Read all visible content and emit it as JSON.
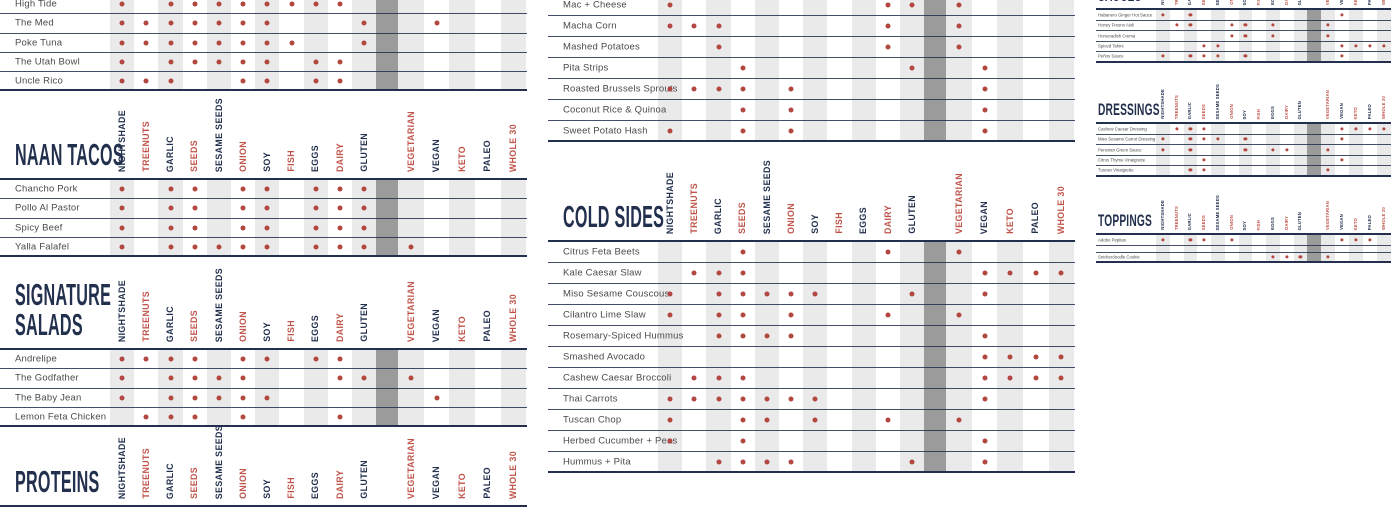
{
  "palette": {
    "navy": "#22304e",
    "red": "#c0544a",
    "dot": "#b2473f",
    "stripe": "#eaeaea",
    "divider": "#9b9b9b",
    "row_label": "#4a4a4a"
  },
  "columns": {
    "allergens": [
      {
        "label": "NIGHTSHADE",
        "color": "navy"
      },
      {
        "label": "TREENUTS",
        "color": "red"
      },
      {
        "label": "GARLIC",
        "color": "navy"
      },
      {
        "label": "SEEDS",
        "color": "red"
      },
      {
        "label": "SESAME SEEDS",
        "color": "navy"
      },
      {
        "label": "ONION",
        "color": "red"
      },
      {
        "label": "SOY",
        "color": "navy"
      },
      {
        "label": "FISH",
        "color": "red"
      },
      {
        "label": "EGGS",
        "color": "navy"
      },
      {
        "label": "DAIRY",
        "color": "red"
      },
      {
        "label": "GLUTEN",
        "color": "navy"
      }
    ],
    "diets": [
      {
        "label": "VEGETARIAN",
        "color": "red"
      },
      {
        "label": "VEGAN",
        "color": "navy"
      },
      {
        "label": "KETO",
        "color": "red"
      },
      {
        "label": "PALEO",
        "color": "navy"
      },
      {
        "label": "WHOLE 30",
        "color": "red"
      }
    ]
  },
  "sections": {
    "bowls_top": {
      "title_lines": null,
      "rows": [
        {
          "label": "High Tide",
          "a": [
            0,
            2,
            3,
            4,
            5,
            6,
            7,
            8,
            9
          ],
          "d": []
        },
        {
          "label": "The Med",
          "a": [
            0,
            1,
            2,
            3,
            4,
            5,
            6,
            10
          ],
          "d": [
            1
          ]
        },
        {
          "label": "Poke Tuna",
          "a": [
            0,
            1,
            2,
            3,
            4,
            5,
            6,
            7,
            10
          ],
          "d": []
        },
        {
          "label": "The Utah Bowl",
          "a": [
            0,
            2,
            3,
            4,
            5,
            6,
            8,
            9
          ],
          "d": []
        },
        {
          "label": "Uncle Rico",
          "a": [
            0,
            1,
            2,
            5,
            6,
            8,
            9
          ],
          "d": []
        }
      ]
    },
    "naan": {
      "title_lines": [
        "NAAN TACOS"
      ],
      "rows": [
        {
          "label": "Chancho Pork",
          "a": [
            0,
            2,
            3,
            5,
            6,
            8,
            9,
            10
          ],
          "d": []
        },
        {
          "label": "Pollo Al Pastor",
          "a": [
            0,
            2,
            3,
            5,
            6,
            8,
            9,
            10
          ],
          "d": []
        },
        {
          "label": "Spicy Beef",
          "a": [
            0,
            2,
            3,
            5,
            6,
            8,
            9,
            10
          ],
          "d": []
        },
        {
          "label": "Yalla Falafel",
          "a": [
            0,
            2,
            3,
            4,
            5,
            6,
            8,
            9,
            10
          ],
          "d": [
            0
          ]
        }
      ]
    },
    "salads": {
      "title_lines": [
        "SIGNATURE",
        "SALADS"
      ],
      "rows": [
        {
          "label": "Andrelipe",
          "a": [
            0,
            1,
            2,
            3,
            5,
            6,
            8,
            9
          ],
          "d": []
        },
        {
          "label": "The Godfather",
          "a": [
            0,
            2,
            3,
            4,
            5,
            9,
            10
          ],
          "d": [
            0
          ]
        },
        {
          "label": "The Baby Jean",
          "a": [
            0,
            2,
            3,
            4,
            5,
            6
          ],
          "d": [
            1
          ]
        },
        {
          "label": "Lemon Feta Chicken",
          "a": [
            1,
            2,
            3,
            5,
            9
          ],
          "d": []
        }
      ]
    },
    "proteins": {
      "title_lines": [
        "PROTEINS"
      ],
      "rows": []
    },
    "hot_top": {
      "title_lines": null,
      "rows": [
        {
          "label": "Mac + Cheese",
          "a": [
            0,
            9,
            10
          ],
          "d": [
            0
          ]
        },
        {
          "label": "Macha Corn",
          "a": [
            0,
            1,
            2,
            9
          ],
          "d": [
            0
          ]
        },
        {
          "label": "Mashed Potatoes",
          "a": [
            2,
            9
          ],
          "d": [
            0
          ]
        },
        {
          "label": "Pita Strips",
          "a": [
            3,
            10
          ],
          "d": [
            1
          ]
        },
        {
          "label": "Roasted Brussels Sprouts",
          "a": [
            0,
            1,
            2,
            3,
            5
          ],
          "d": [
            1
          ]
        },
        {
          "label": "Coconut Rice & Quinoa",
          "a": [
            3,
            5
          ],
          "d": [
            1
          ]
        },
        {
          "label": "Sweet Potato Hash",
          "a": [
            0,
            3,
            5
          ],
          "d": [
            1
          ]
        }
      ]
    },
    "cold": {
      "title_lines": [
        "COLD SIDES"
      ],
      "rows": [
        {
          "label": "Citrus Feta Beets",
          "a": [
            3,
            9
          ],
          "d": [
            0
          ]
        },
        {
          "label": "Kale Caesar Slaw",
          "a": [
            1,
            2,
            3
          ],
          "d": [
            1,
            2,
            3,
            4
          ]
        },
        {
          "label": "Miso Sesame Couscous",
          "a": [
            0,
            2,
            3,
            4,
            5,
            6,
            10
          ],
          "d": [
            1
          ]
        },
        {
          "label": "Cilantro Lime Slaw",
          "a": [
            0,
            2,
            3,
            5,
            9
          ],
          "d": [
            0
          ]
        },
        {
          "label": "Rosemary-Spiced Hummus",
          "a": [
            2,
            3,
            4,
            5
          ],
          "d": [
            1
          ]
        },
        {
          "label": "Smashed Avocado",
          "a": [],
          "d": [
            1,
            2,
            3,
            4
          ]
        },
        {
          "label": "Cashew Caesar Broccoli",
          "a": [
            1,
            2,
            3
          ],
          "d": [
            1,
            2,
            3,
            4
          ]
        },
        {
          "label": "Thai Carrots",
          "a": [
            0,
            1,
            2,
            3,
            4,
            5,
            6
          ],
          "d": [
            1
          ]
        },
        {
          "label": "Tuscan Chop",
          "a": [
            0,
            3,
            4,
            6,
            9
          ],
          "d": [
            0
          ]
        },
        {
          "label": "Herbed Cucumber + Peas",
          "a": [
            0,
            3
          ],
          "d": [
            1
          ]
        },
        {
          "label": "Hummus + Pita",
          "a": [
            2,
            3,
            4,
            5,
            10
          ],
          "d": [
            1
          ]
        }
      ]
    },
    "sauces": {
      "title_lines": [
        "SAUCES"
      ],
      "rows": [
        {
          "label": "Habanero Ginger Hot Sauce",
          "a": [
            0,
            2
          ],
          "d": [
            1
          ]
        },
        {
          "label": "Honey Fresno Aioli",
          "a": [
            1,
            2,
            5,
            6,
            8
          ],
          "d": [
            0
          ]
        },
        {
          "label": "Horseradish Crema",
          "a": [
            5,
            6,
            8
          ],
          "d": [
            0
          ]
        },
        {
          "label": "Spiced Tahini",
          "a": [
            3,
            4
          ],
          "d": [
            1,
            2,
            3,
            4
          ]
        },
        {
          "label": "Peños Sauce",
          "a": [
            0,
            2,
            3,
            4,
            6
          ],
          "d": [
            1
          ]
        }
      ]
    },
    "dressings": {
      "title_lines": [
        "DRESSINGS"
      ],
      "rows": [
        {
          "label": "Cashew Caesar Dressing",
          "a": [
            1,
            2,
            3
          ],
          "d": [
            1,
            2,
            3,
            4
          ]
        },
        {
          "label": "Miso Sesame Carrot Dressing",
          "a": [
            0,
            2,
            3,
            4,
            6
          ],
          "d": [
            1
          ]
        },
        {
          "label": "Peruvian Green Sauce",
          "a": [
            0,
            2,
            6,
            8,
            9
          ],
          "d": [
            0
          ]
        },
        {
          "label": "Citrus Thyme Vinaigrette",
          "a": [
            3
          ],
          "d": [
            1
          ]
        },
        {
          "label": "Tuscan Vinaigrette",
          "a": [
            2,
            3
          ],
          "d": [
            0
          ]
        }
      ]
    },
    "toppings": {
      "title_lines": [
        "TOPPINGS"
      ],
      "rows": [
        {
          "label": "Adobo Pepitas",
          "a": [
            0,
            2,
            3,
            5
          ],
          "d": [
            1,
            2,
            3
          ]
        },
        {
          "spacer": true
        },
        {
          "label": "Snickerdoodle Cookie",
          "a": [
            8,
            9,
            10
          ],
          "d": [
            0
          ]
        }
      ]
    }
  }
}
